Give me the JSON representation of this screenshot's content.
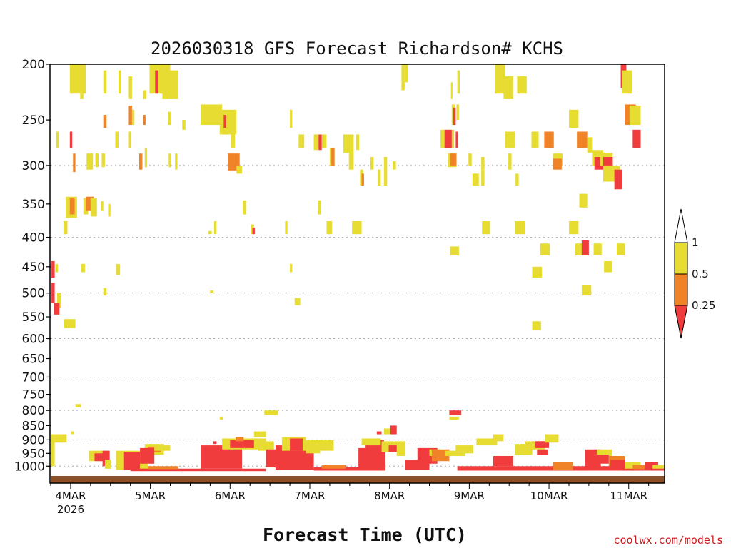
{
  "chart_data": {
    "type": "heatmap",
    "title": "2026030318 GFS Forecast Richardson# KCHS",
    "xlabel": "Forecast Time (UTC)",
    "ylabel": "",
    "credit": "coolwx.com/models",
    "x_range_days": [
      0,
      7.7
    ],
    "ylim": [
      1040,
      200
    ],
    "y_scale": "pressure (log)",
    "y_ticks": [
      200,
      250,
      300,
      350,
      400,
      450,
      500,
      550,
      600,
      650,
      700,
      750,
      800,
      850,
      900,
      950,
      1000
    ],
    "y_tick_labels": [
      "200",
      "250",
      "300",
      "350",
      "400",
      "450",
      "500",
      "550",
      "600",
      "650",
      "700",
      "750",
      "800",
      "850",
      "900",
      "950",
      "1000"
    ],
    "gridlines_at": [
      300,
      400,
      500,
      600,
      700,
      800,
      900,
      1000
    ],
    "x_ticks": [
      {
        "day": 0.25,
        "label": "4MAR",
        "sublabel": "2026"
      },
      {
        "day": 1.25,
        "label": "5MAR",
        "sublabel": ""
      },
      {
        "day": 2.25,
        "label": "6MAR",
        "sublabel": ""
      },
      {
        "day": 3.25,
        "label": "7MAR",
        "sublabel": ""
      },
      {
        "day": 4.25,
        "label": "8MAR",
        "sublabel": ""
      },
      {
        "day": 5.25,
        "label": "9MAR",
        "sublabel": ""
      },
      {
        "day": 6.25,
        "label": "10MAR",
        "sublabel": ""
      },
      {
        "day": 7.25,
        "label": "11MAR",
        "sublabel": ""
      }
    ],
    "legend": {
      "placement": "right",
      "levels": [
        "1",
        "0.5",
        "0.25"
      ],
      "colors": {
        "above": "#ffffff",
        "high": "#e6dc32",
        "mid": "#f08228",
        "low": "#f03c3c"
      }
    },
    "category_colors": {
      "1": "#e6dc32",
      "2": "#f08228",
      "3": "#f03c3c"
    },
    "surface_color": "#8c5028",
    "cells_format": "[day_start, day_end, p_top, p_bottom, category] category 1: 0.5-1, 2: 0.25-0.5, 3: <0.25",
    "cells": [
      [
        0.24,
        0.44,
        200,
        225,
        1
      ],
      [
        0.37,
        0.41,
        225,
        230,
        1
      ],
      [
        0.66,
        0.7,
        205,
        225,
        1
      ],
      [
        0.85,
        0.88,
        205,
        225,
        1
      ],
      [
        0.98,
        1.02,
        210,
        230,
        1
      ],
      [
        1.16,
        1.2,
        222,
        230,
        1
      ],
      [
        1.24,
        1.5,
        200,
        225,
        1
      ],
      [
        1.31,
        1.35,
        205,
        225,
        3
      ],
      [
        1.4,
        1.6,
        205,
        230,
        1
      ],
      [
        0.66,
        0.7,
        245,
        258,
        2
      ],
      [
        0.98,
        1.02,
        236,
        255,
        2
      ],
      [
        1.02,
        1.05,
        240,
        255,
        1
      ],
      [
        1.16,
        1.19,
        245,
        255,
        2
      ],
      [
        1.47,
        1.51,
        242,
        255,
        1
      ],
      [
        1.65,
        1.69,
        250,
        260,
        1
      ],
      [
        1.88,
        2.15,
        235,
        255,
        1
      ],
      [
        2.12,
        2.33,
        240,
        265,
        1
      ],
      [
        2.17,
        2.2,
        245,
        258,
        3
      ],
      [
        3.0,
        3.03,
        240,
        258,
        1
      ],
      [
        0.07,
        0.1,
        262,
        280,
        1
      ],
      [
        0.24,
        0.27,
        262,
        280,
        3
      ],
      [
        0.81,
        0.85,
        262,
        280,
        1
      ],
      [
        0.98,
        1.01,
        262,
        280,
        1
      ],
      [
        2.26,
        2.31,
        264,
        280,
        1
      ],
      [
        0.28,
        0.31,
        286,
        308,
        2
      ],
      [
        0.45,
        0.53,
        286,
        305,
        1
      ],
      [
        0.56,
        0.6,
        286,
        302,
        1
      ],
      [
        0.64,
        0.68,
        286,
        302,
        1
      ],
      [
        1.11,
        1.15,
        286,
        305,
        2
      ],
      [
        1.18,
        1.21,
        280,
        302,
        1
      ],
      [
        1.48,
        1.51,
        286,
        302,
        1
      ],
      [
        1.56,
        1.59,
        286,
        305,
        1
      ],
      [
        2.22,
        2.37,
        286,
        306,
        2
      ],
      [
        2.33,
        2.4,
        300,
        310,
        1
      ],
      [
        3.11,
        3.18,
        265,
        280,
        1
      ],
      [
        3.3,
        3.36,
        265,
        282,
        1
      ],
      [
        3.36,
        3.4,
        265,
        282,
        3
      ],
      [
        3.4,
        3.46,
        265,
        280,
        1
      ],
      [
        3.5,
        3.56,
        280,
        300,
        1
      ],
      [
        3.52,
        3.56,
        280,
        300,
        2
      ],
      [
        3.67,
        3.8,
        265,
        285,
        1
      ],
      [
        3.74,
        3.8,
        285,
        305,
        1
      ],
      [
        3.83,
        3.87,
        265,
        282,
        1
      ],
      [
        3.88,
        3.92,
        305,
        325,
        1
      ],
      [
        3.9,
        3.93,
        310,
        325,
        2
      ],
      [
        4.01,
        4.05,
        290,
        305,
        1
      ],
      [
        4.1,
        4.14,
        305,
        325,
        1
      ],
      [
        4.18,
        4.22,
        290,
        325,
        1
      ],
      [
        4.29,
        4.33,
        295,
        305,
        1
      ],
      [
        4.89,
        5.06,
        260,
        280,
        1
      ],
      [
        4.94,
        5.03,
        260,
        280,
        3
      ],
      [
        5.03,
        5.07,
        235,
        255,
        1
      ],
      [
        5.05,
        5.08,
        238,
        255,
        3
      ],
      [
        5.09,
        5.12,
        235,
        250,
        1
      ],
      [
        5.08,
        5.11,
        262,
        280,
        3
      ],
      [
        4.98,
        5.09,
        286,
        302,
        1
      ],
      [
        5.01,
        5.09,
        286,
        300,
        2
      ],
      [
        5.24,
        5.28,
        286,
        300,
        1
      ],
      [
        5.4,
        5.44,
        290,
        305,
        1
      ],
      [
        4.4,
        4.44,
        200,
        222,
        1
      ],
      [
        4.44,
        4.48,
        200,
        215,
        1
      ],
      [
        5.02,
        5.04,
        215,
        230,
        1
      ],
      [
        5.1,
        5.13,
        205,
        225,
        1
      ],
      [
        5.29,
        5.37,
        310,
        325,
        1
      ],
      [
        5.7,
        5.82,
        262,
        280,
        1
      ],
      [
        5.74,
        5.78,
        286,
        305,
        1
      ],
      [
        5.83,
        5.87,
        310,
        325,
        1
      ],
      [
        6.03,
        6.12,
        262,
        280,
        1
      ],
      [
        6.19,
        6.31,
        262,
        280,
        2
      ],
      [
        6.3,
        6.42,
        286,
        300,
        1
      ],
      [
        6.3,
        6.41,
        292,
        305,
        2
      ],
      [
        5.57,
        5.7,
        200,
        225,
        1
      ],
      [
        5.68,
        5.8,
        210,
        230,
        1
      ],
      [
        5.85,
        5.97,
        210,
        225,
        1
      ],
      [
        6.5,
        6.62,
        240,
        258,
        1
      ],
      [
        6.6,
        6.73,
        262,
        280,
        2
      ],
      [
        6.73,
        6.79,
        268,
        285,
        1
      ],
      [
        6.79,
        6.93,
        282,
        300,
        1
      ],
      [
        6.82,
        6.95,
        290,
        305,
        3
      ],
      [
        6.89,
        7.05,
        285,
        300,
        1
      ],
      [
        6.93,
        7.05,
        290,
        303,
        3
      ],
      [
        6.93,
        7.14,
        300,
        320,
        1
      ],
      [
        7.07,
        7.17,
        305,
        330,
        3
      ],
      [
        7.2,
        7.34,
        235,
        255,
        2
      ],
      [
        7.26,
        7.4,
        236,
        255,
        1
      ],
      [
        7.3,
        7.4,
        260,
        280,
        3
      ],
      [
        6.63,
        6.73,
        336,
        355,
        1
      ],
      [
        6.5,
        6.62,
        375,
        395,
        1
      ],
      [
        6.58,
        6.68,
        410,
        430,
        1
      ],
      [
        6.66,
        6.75,
        405,
        430,
        3
      ],
      [
        6.81,
        6.91,
        410,
        430,
        1
      ],
      [
        7.1,
        7.2,
        410,
        430,
        1
      ],
      [
        6.94,
        7.04,
        440,
        460,
        1
      ],
      [
        6.66,
        6.78,
        485,
        505,
        1
      ],
      [
        6.14,
        6.26,
        410,
        430,
        1
      ],
      [
        6.04,
        6.16,
        450,
        470,
        1
      ],
      [
        6.04,
        6.15,
        560,
        580,
        1
      ],
      [
        7.15,
        7.22,
        200,
        220,
        3
      ],
      [
        7.17,
        7.29,
        205,
        225,
        1
      ],
      [
        5.05,
        5.12,
        415,
        430,
        1
      ],
      [
        5.82,
        5.95,
        375,
        395,
        1
      ],
      [
        5.4,
        5.44,
        305,
        325,
        1
      ],
      [
        0.01,
        0.05,
        440,
        470,
        3
      ],
      [
        0.06,
        0.09,
        445,
        460,
        1
      ],
      [
        0.01,
        0.05,
        480,
        520,
        3
      ],
      [
        0.08,
        0.13,
        500,
        530,
        1
      ],
      [
        0.04,
        0.11,
        520,
        545,
        3
      ],
      [
        0.17,
        0.31,
        555,
        575,
        1
      ],
      [
        0.19,
        0.33,
        340,
        370,
        1
      ],
      [
        0.24,
        0.3,
        342,
        365,
        2
      ],
      [
        0.41,
        0.47,
        342,
        365,
        1
      ],
      [
        0.44,
        0.54,
        340,
        360,
        2
      ],
      [
        0.5,
        0.58,
        342,
        368,
        1
      ],
      [
        0.72,
        0.75,
        350,
        368,
        1
      ],
      [
        0.63,
        0.66,
        346,
        360,
        1
      ],
      [
        0.16,
        0.21,
        375,
        395,
        1
      ],
      [
        0.38,
        0.43,
        445,
        460,
        1
      ],
      [
        0.82,
        0.87,
        445,
        465,
        1
      ],
      [
        0.66,
        0.7,
        490,
        505,
        1
      ],
      [
        2.05,
        2.08,
        375,
        395,
        1
      ],
      [
        1.98,
        2.02,
        390,
        395,
        1
      ],
      [
        2.41,
        2.45,
        345,
        365,
        1
      ],
      [
        2.51,
        2.55,
        380,
        395,
        1
      ],
      [
        2.53,
        2.56,
        385,
        395,
        3
      ],
      [
        2.94,
        2.97,
        375,
        395,
        1
      ],
      [
        3.0,
        3.03,
        445,
        460,
        1
      ],
      [
        3.35,
        3.39,
        345,
        365,
        1
      ],
      [
        3.46,
        3.53,
        375,
        395,
        1
      ],
      [
        3.78,
        3.9,
        375,
        395,
        1
      ],
      [
        3.06,
        3.13,
        510,
        525,
        1
      ],
      [
        2.0,
        2.04,
        495,
        500,
        1
      ],
      [
        5.41,
        5.51,
        375,
        395,
        1
      ],
      [
        5.01,
        5.07,
        415,
        430,
        1
      ],
      [
        0.0,
        0.05,
        880,
        1000,
        1
      ],
      [
        0.05,
        0.2,
        880,
        910,
        1
      ],
      [
        0.26,
        0.29,
        870,
        880,
        1
      ],
      [
        0.31,
        0.38,
        780,
        790,
        1
      ],
      [
        0.48,
        0.7,
        940,
        980,
        1
      ],
      [
        0.55,
        0.66,
        950,
        980,
        3
      ],
      [
        0.65,
        0.74,
        940,
        1000,
        3
      ],
      [
        0.68,
        0.76,
        975,
        1010,
        1
      ],
      [
        0.82,
        1.22,
        940,
        1015,
        1
      ],
      [
        0.92,
        1.12,
        945,
        1015,
        3
      ],
      [
        1.18,
        1.42,
        915,
        955,
        1
      ],
      [
        1.22,
        1.38,
        925,
        945,
        2
      ],
      [
        1.12,
        1.3,
        930,
        990,
        3
      ],
      [
        1.3,
        1.5,
        920,
        940,
        1
      ],
      [
        1.0,
        2.7,
        1010,
        1020,
        3
      ],
      [
        1.22,
        1.6,
        1000,
        1012,
        2
      ],
      [
        1.88,
        2.4,
        920,
        1010,
        3
      ],
      [
        2.15,
        2.7,
        895,
        935,
        1
      ],
      [
        2.25,
        2.55,
        900,
        930,
        3
      ],
      [
        2.32,
        2.42,
        890,
        905,
        2
      ],
      [
        2.6,
        2.8,
        905,
        940,
        1
      ],
      [
        2.7,
        2.86,
        935,
        1005,
        3
      ],
      [
        2.68,
        2.85,
        800,
        815,
        1
      ],
      [
        2.12,
        2.16,
        820,
        830,
        1
      ],
      [
        2.04,
        2.08,
        905,
        915,
        3
      ],
      [
        2.55,
        2.7,
        870,
        890,
        1
      ],
      [
        2.82,
        3.3,
        920,
        1015,
        3
      ],
      [
        2.9,
        3.2,
        890,
        940,
        1
      ],
      [
        3.0,
        3.16,
        895,
        940,
        3
      ],
      [
        3.2,
        3.38,
        900,
        950,
        1
      ],
      [
        3.35,
        3.55,
        900,
        940,
        1
      ],
      [
        3.3,
        4.2,
        1005,
        1018,
        3
      ],
      [
        3.4,
        3.7,
        995,
        1010,
        2
      ],
      [
        3.86,
        4.2,
        930,
        1010,
        3
      ],
      [
        3.95,
        4.18,
        900,
        950,
        3
      ],
      [
        3.9,
        4.14,
        895,
        920,
        1
      ],
      [
        4.15,
        4.45,
        905,
        945,
        1
      ],
      [
        4.24,
        4.38,
        920,
        945,
        3
      ],
      [
        4.26,
        4.34,
        850,
        880,
        3
      ],
      [
        4.18,
        4.26,
        860,
        880,
        1
      ],
      [
        4.09,
        4.15,
        870,
        880,
        3
      ],
      [
        4.34,
        4.45,
        915,
        960,
        1
      ],
      [
        4.45,
        4.75,
        975,
        1015,
        3
      ],
      [
        4.6,
        4.85,
        930,
        990,
        3
      ],
      [
        4.75,
        4.9,
        935,
        960,
        1
      ],
      [
        4.78,
        5.0,
        935,
        980,
        2
      ],
      [
        4.95,
        5.2,
        940,
        960,
        1
      ],
      [
        5.0,
        5.15,
        800,
        815,
        3
      ],
      [
        5.0,
        5.12,
        820,
        830,
        1
      ],
      [
        5.08,
        5.3,
        920,
        950,
        1
      ],
      [
        5.1,
        7.7,
        1000,
        1018,
        3
      ],
      [
        5.34,
        5.6,
        895,
        920,
        1
      ],
      [
        5.55,
        5.68,
        880,
        905,
        1
      ],
      [
        5.55,
        5.8,
        960,
        1000,
        3
      ],
      [
        5.82,
        6.04,
        915,
        955,
        1
      ],
      [
        5.95,
        6.2,
        905,
        935,
        1
      ],
      [
        6.08,
        6.25,
        905,
        930,
        3
      ],
      [
        6.2,
        6.37,
        880,
        910,
        1
      ],
      [
        6.1,
        6.24,
        935,
        955,
        3
      ],
      [
        6.3,
        6.55,
        985,
        1015,
        2
      ],
      [
        6.55,
        6.75,
        1005,
        1018,
        3
      ],
      [
        6.7,
        6.9,
        935,
        1010,
        3
      ],
      [
        6.85,
        7.04,
        935,
        960,
        1
      ],
      [
        6.84,
        7.0,
        955,
        990,
        3
      ],
      [
        7.0,
        7.2,
        960,
        1000,
        2
      ],
      [
        7.02,
        7.2,
        975,
        1005,
        3
      ],
      [
        7.2,
        7.4,
        985,
        1010,
        1
      ],
      [
        7.3,
        7.5,
        995,
        1012,
        2
      ],
      [
        7.45,
        7.62,
        985,
        1015,
        3
      ],
      [
        7.55,
        7.7,
        995,
        1010,
        1
      ]
    ]
  }
}
